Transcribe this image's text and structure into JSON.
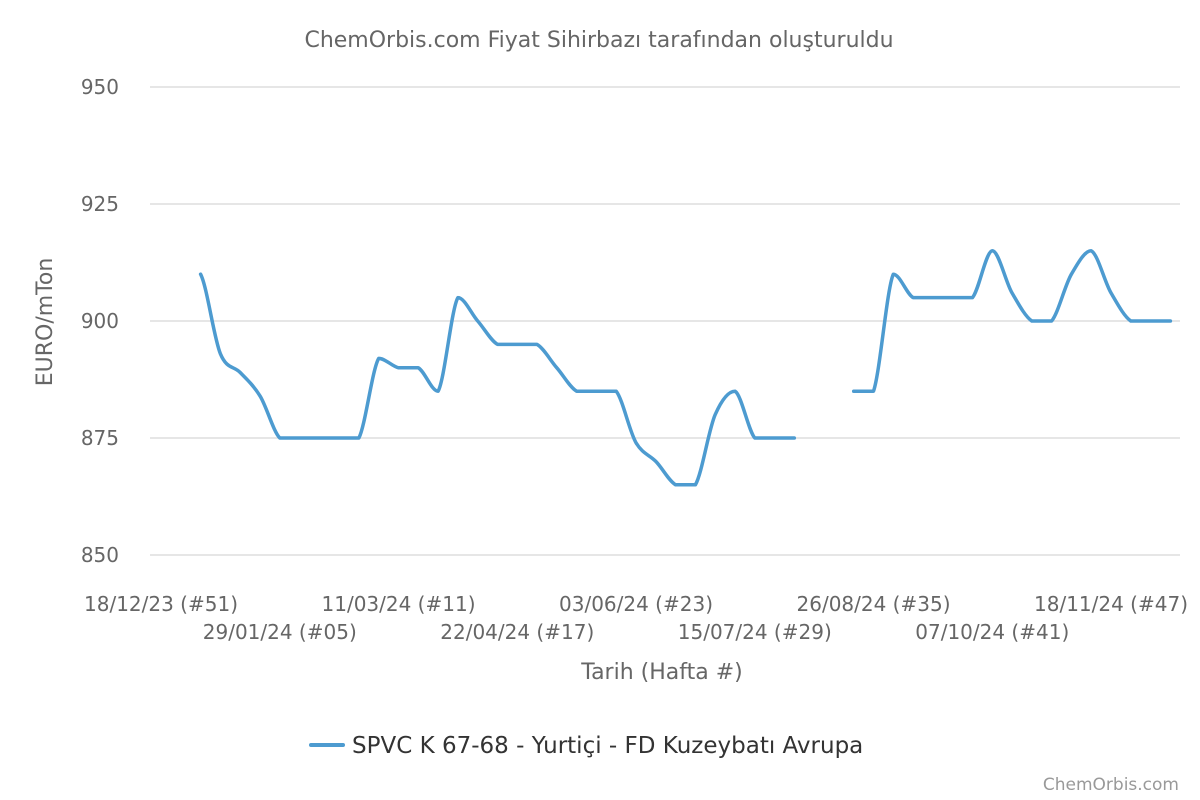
{
  "colors": {
    "series": "#4d9bd0",
    "grid": "#dddddd",
    "text": "#666666"
  },
  "chart_data": {
    "type": "line",
    "title": "ChemOrbis.com Fiyat Sihirbazı tarafından oluşturuldu",
    "xlabel": "Tarih (Hafta #)",
    "ylabel": "EURO/mTon",
    "ylim": [
      850,
      950
    ],
    "yticks": [
      "850",
      "875",
      "900",
      "925",
      "950"
    ],
    "grid": true,
    "legend_position": "bottom-center",
    "credits": "ChemOrbis.com",
    "xticks": [
      {
        "label": "18/12/23 (#51)",
        "date": "2023-12-18"
      },
      {
        "label": "29/01/24 (#05)",
        "date": "2024-01-29"
      },
      {
        "label": "11/03/24 (#11)",
        "date": "2024-03-11"
      },
      {
        "label": "22/04/24 (#17)",
        "date": "2024-04-22"
      },
      {
        "label": "03/06/24 (#23)",
        "date": "2024-06-03"
      },
      {
        "label": "15/07/24 (#29)",
        "date": "2024-07-15"
      },
      {
        "label": "26/08/24 (#35)",
        "date": "2024-08-26"
      },
      {
        "label": "07/10/24 (#41)",
        "date": "2024-10-07"
      },
      {
        "label": "18/11/24 (#47)",
        "date": "2024-11-18"
      }
    ],
    "series": [
      {
        "name": "SPVC K 67-68 - Yurtiçi - FD Kuzeybatı Avrupa",
        "points": [
          {
            "x": "2024-01-01",
            "y": 910
          },
          {
            "x": "2024-01-08",
            "y": 893
          },
          {
            "x": "2024-01-15",
            "y": 889
          },
          {
            "x": "2024-01-22",
            "y": 884
          },
          {
            "x": "2024-01-29",
            "y": 875
          },
          {
            "x": "2024-02-05",
            "y": 875
          },
          {
            "x": "2024-02-12",
            "y": 875
          },
          {
            "x": "2024-02-19",
            "y": 875
          },
          {
            "x": "2024-02-26",
            "y": 875
          },
          {
            "x": "2024-03-04",
            "y": 892
          },
          {
            "x": "2024-03-11",
            "y": 890
          },
          {
            "x": "2024-03-18",
            "y": 890
          },
          {
            "x": "2024-03-25",
            "y": 885
          },
          {
            "x": "2024-04-01",
            "y": 905
          },
          {
            "x": "2024-04-08",
            "y": 900
          },
          {
            "x": "2024-04-15",
            "y": 895
          },
          {
            "x": "2024-04-22",
            "y": 895
          },
          {
            "x": "2024-04-29",
            "y": 895
          },
          {
            "x": "2024-05-06",
            "y": 890
          },
          {
            "x": "2024-05-13",
            "y": 885
          },
          {
            "x": "2024-05-20",
            "y": 885
          },
          {
            "x": "2024-05-27",
            "y": 885
          },
          {
            "x": "2024-06-03",
            "y": 874
          },
          {
            "x": "2024-06-10",
            "y": 870
          },
          {
            "x": "2024-06-17",
            "y": 865
          },
          {
            "x": "2024-06-24",
            "y": 865
          },
          {
            "x": "2024-07-01",
            "y": 880
          },
          {
            "x": "2024-07-08",
            "y": 885
          },
          {
            "x": "2024-07-15",
            "y": 875
          },
          {
            "x": "2024-07-22",
            "y": 875
          },
          {
            "x": "2024-07-29",
            "y": 875
          },
          {
            "x": "2024-08-05",
            "y": null
          },
          {
            "x": "2024-08-12",
            "y": null
          },
          {
            "x": "2024-08-19",
            "y": 885
          },
          {
            "x": "2024-08-26",
            "y": 885
          },
          {
            "x": "2024-09-02",
            "y": 910
          },
          {
            "x": "2024-09-09",
            "y": 905
          },
          {
            "x": "2024-09-16",
            "y": 905
          },
          {
            "x": "2024-09-23",
            "y": 905
          },
          {
            "x": "2024-09-30",
            "y": 905
          },
          {
            "x": "2024-10-07",
            "y": 915
          },
          {
            "x": "2024-10-14",
            "y": 906
          },
          {
            "x": "2024-10-21",
            "y": 900
          },
          {
            "x": "2024-10-28",
            "y": 900
          },
          {
            "x": "2024-11-04",
            "y": 910
          },
          {
            "x": "2024-11-11",
            "y": 915
          },
          {
            "x": "2024-11-18",
            "y": 906
          },
          {
            "x": "2024-11-25",
            "y": 900
          },
          {
            "x": "2024-12-02",
            "y": 900
          },
          {
            "x": "2024-12-09",
            "y": 900
          }
        ]
      }
    ]
  }
}
